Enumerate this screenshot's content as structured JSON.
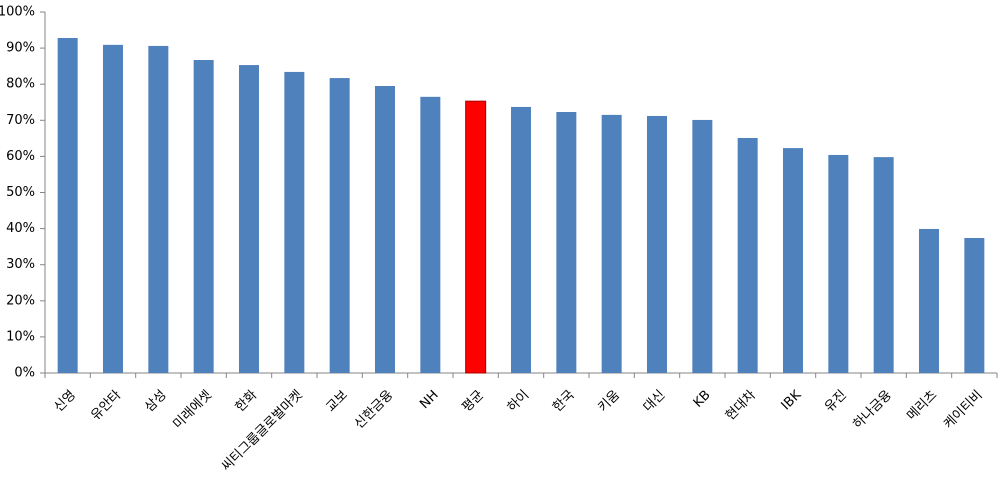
{
  "chart_data": {
    "type": "bar",
    "categories": [
      "신영",
      "유안타",
      "삼성",
      "미래에셋",
      "한화",
      "씨티그룹글로벌마켓",
      "교보",
      "신한금융",
      "NH",
      "평균",
      "하이",
      "한국",
      "키움",
      "대신",
      "KB",
      "현대차",
      "IBK",
      "유진",
      "하나금융",
      "메리츠",
      "케이티비"
    ],
    "values": [
      92.8,
      90.9,
      90.6,
      86.7,
      85.3,
      83.4,
      81.7,
      79.5,
      76.5,
      75.3,
      73.7,
      72.3,
      71.5,
      71.2,
      70.1,
      65.1,
      62.3,
      60.4,
      59.8,
      39.9,
      37.4
    ],
    "colors": [
      "#4f81bd",
      "#4f81bd",
      "#4f81bd",
      "#4f81bd",
      "#4f81bd",
      "#4f81bd",
      "#4f81bd",
      "#4f81bd",
      "#4f81bd",
      "#ff0000",
      "#4f81bd",
      "#4f81bd",
      "#4f81bd",
      "#4f81bd",
      "#4f81bd",
      "#4f81bd",
      "#4f81bd",
      "#4f81bd",
      "#4f81bd",
      "#4f81bd",
      "#4f81bd"
    ],
    "ylim": [
      0,
      100
    ],
    "yticks": [
      {
        "value": 0,
        "label": "0%"
      },
      {
        "value": 10,
        "label": "10%"
      },
      {
        "value": 20,
        "label": "20%"
      },
      {
        "value": 30,
        "label": "30%"
      },
      {
        "value": 40,
        "label": "40%"
      },
      {
        "value": 50,
        "label": "50%"
      },
      {
        "value": 60,
        "label": "60%"
      },
      {
        "value": 70,
        "label": "70%"
      },
      {
        "value": 80,
        "label": "80%"
      },
      {
        "value": 90,
        "label": "90%"
      },
      {
        "value": 100,
        "label": "100%"
      }
    ],
    "grid": false
  }
}
